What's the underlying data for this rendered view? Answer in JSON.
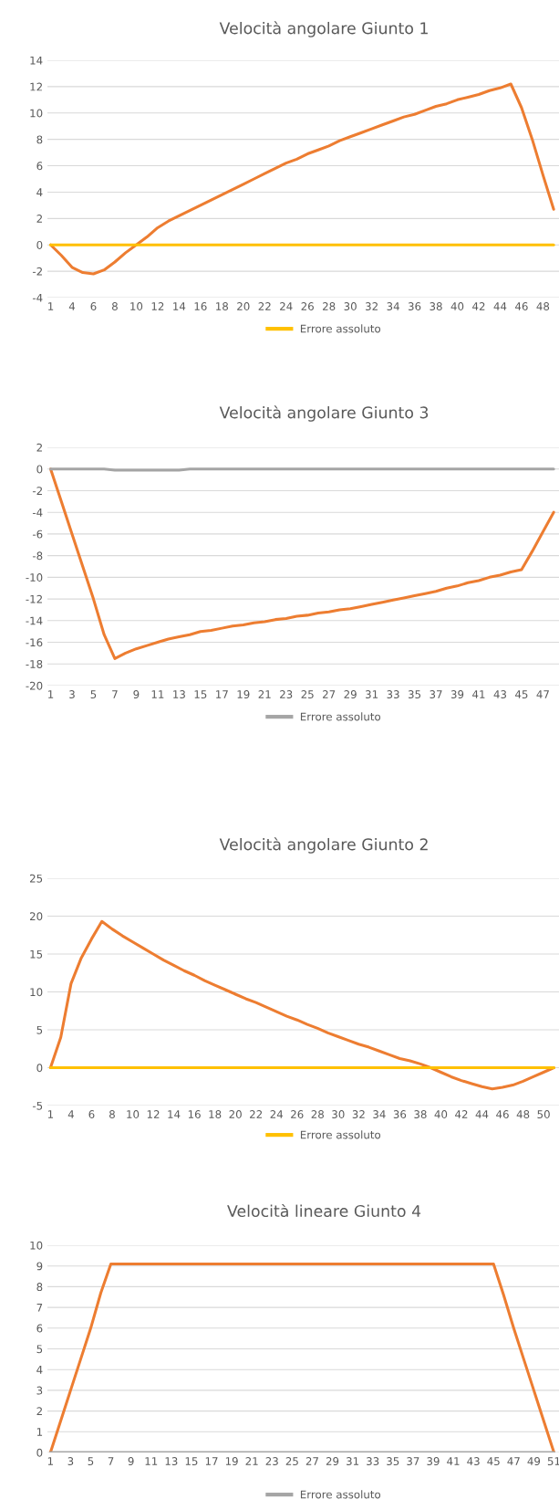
{
  "chart_data": [
    {
      "type": "line",
      "title": "Velocità angolare Giunto 1",
      "categories": [
        "1",
        null,
        "4",
        null,
        "6",
        null,
        "8",
        null,
        "10",
        null,
        "12",
        null,
        "14",
        null,
        "16",
        null,
        "18",
        null,
        "20",
        null,
        "22",
        null,
        "24",
        null,
        "26",
        null,
        "28",
        null,
        "30",
        null,
        "32",
        null,
        "34",
        null,
        "36",
        null,
        "38",
        null,
        "40",
        null,
        "42",
        null,
        "44",
        null,
        "46",
        null,
        "48",
        null
      ],
      "ylim": [
        -4,
        14
      ],
      "yticks": [
        -4,
        -2,
        0,
        2,
        4,
        6,
        8,
        10,
        12,
        14
      ],
      "grid": "y",
      "legend": "bottom",
      "marker": "none",
      "line_style": "solid",
      "series": [
        {
          "color": "#ed7d31",
          "values": [
            0,
            -0.8,
            -1.7,
            -2.1,
            -2.2,
            -1.9,
            -1.3,
            -0.6,
            0,
            0.6,
            1.3,
            1.8,
            2.2,
            2.6,
            3.0,
            3.4,
            3.8,
            4.2,
            4.6,
            5.0,
            5.4,
            5.8,
            6.2,
            6.5,
            6.9,
            7.2,
            7.5,
            7.9,
            8.2,
            8.5,
            8.8,
            9.1,
            9.4,
            9.7,
            9.9,
            10.2,
            10.5,
            10.7,
            11.0,
            11.2,
            11.4,
            11.7,
            11.9,
            12.2,
            10.4,
            8.0,
            5.3,
            2.7
          ]
        },
        {
          "name": "Errore assoluto",
          "color": "#ffc000",
          "values": [
            0,
            0,
            0,
            0,
            0,
            0,
            0,
            0,
            0,
            0,
            0,
            0,
            0,
            0,
            0,
            0,
            0,
            0,
            0,
            0,
            0,
            0,
            0,
            0,
            0,
            0,
            0,
            0,
            0,
            0,
            0,
            0,
            0,
            0,
            0,
            0,
            0,
            0,
            0,
            0,
            0,
            0,
            0,
            0,
            0,
            0,
            0,
            0
          ]
        }
      ]
    },
    {
      "type": "line",
      "title": "Velocità angolare Giunto 3",
      "categories": [
        "1",
        null,
        "3",
        null,
        "5",
        null,
        "7",
        null,
        "9",
        null,
        "11",
        null,
        "13",
        null,
        "15",
        null,
        "17",
        null,
        "19",
        null,
        "21",
        null,
        "23",
        null,
        "25",
        null,
        "27",
        null,
        "29",
        null,
        "31",
        null,
        "33",
        null,
        "35",
        null,
        "37",
        null,
        "39",
        null,
        "41",
        null,
        "43",
        null,
        "45",
        null,
        "47",
        null
      ],
      "ylim": [
        -20,
        2
      ],
      "yticks": [
        -20,
        -18,
        -16,
        -14,
        -12,
        -10,
        -8,
        -6,
        -4,
        -2,
        0,
        2
      ],
      "grid": "y",
      "legend": "bottom",
      "marker": "none",
      "line_style": "solid",
      "series": [
        {
          "color": "#ed7d31",
          "values": [
            0,
            -3,
            -6,
            -9,
            -12,
            -15.3,
            -17.5,
            -17.0,
            -16.6,
            -16.3,
            -16.0,
            -15.7,
            -15.5,
            -15.3,
            -15.0,
            -14.9,
            -14.7,
            -14.5,
            -14.4,
            -14.2,
            -14.1,
            -13.9,
            -13.8,
            -13.6,
            -13.5,
            -13.3,
            -13.2,
            -13.0,
            -12.9,
            -12.7,
            -12.5,
            -12.3,
            -12.1,
            -11.9,
            -11.7,
            -11.5,
            -11.3,
            -11.0,
            -10.8,
            -10.5,
            -10.3,
            -10.0,
            -9.8,
            -9.5,
            -9.3,
            -7.6,
            -5.8,
            -4.0
          ]
        },
        {
          "name": "Errore assoluto",
          "color": "#a5a5a5",
          "values": [
            0,
            0,
            0,
            0,
            0,
            0,
            -0.1,
            -0.1,
            -0.1,
            -0.1,
            -0.1,
            -0.1,
            -0.1,
            0,
            0,
            0,
            0,
            0,
            0,
            0,
            0,
            0,
            0,
            0,
            0,
            0,
            0,
            0,
            0,
            0,
            0,
            0,
            0,
            0,
            0,
            0,
            0,
            0,
            0,
            0,
            0,
            0,
            0,
            0,
            0,
            0,
            0,
            0
          ]
        }
      ]
    },
    {
      "type": "line",
      "title": "Velocità angolare Giunto 2",
      "categories": [
        "1",
        null,
        "4",
        null,
        "6",
        null,
        "8",
        null,
        "10",
        null,
        "12",
        null,
        "14",
        null,
        "16",
        null,
        "18",
        null,
        "20",
        null,
        "22",
        null,
        "24",
        null,
        "26",
        null,
        "28",
        null,
        "30",
        null,
        "32",
        null,
        "34",
        null,
        "36",
        null,
        "38",
        null,
        "40",
        null,
        "42",
        null,
        "44",
        null,
        "46",
        null,
        "48",
        null,
        "50",
        null
      ],
      "ylim": [
        -5,
        25
      ],
      "yticks": [
        -5,
        0,
        5,
        10,
        15,
        20,
        25
      ],
      "grid": "y",
      "legend": "bottom",
      "marker": "none",
      "line_style": "solid",
      "series": [
        {
          "color": "#ed7d31",
          "values": [
            0,
            4.0,
            11.1,
            14.5,
            17.0,
            19.3,
            18.3,
            17.4,
            16.6,
            15.8,
            15.0,
            14.2,
            13.5,
            12.8,
            12.2,
            11.5,
            10.9,
            10.3,
            9.7,
            9.1,
            8.6,
            8.0,
            7.4,
            6.8,
            6.3,
            5.7,
            5.2,
            4.6,
            4.1,
            3.6,
            3.1,
            2.7,
            2.2,
            1.7,
            1.2,
            0.9,
            0.5,
            0,
            -0.6,
            -1.2,
            -1.7,
            -2.1,
            -2.5,
            -2.8,
            -2.6,
            -2.3,
            -1.8,
            -1.2,
            -0.6,
            0
          ]
        },
        {
          "name": "Errore assoluto",
          "color": "#ffc000",
          "values": [
            0,
            0,
            0,
            0,
            0,
            0,
            0,
            0,
            0,
            0,
            0,
            0,
            0,
            0,
            0,
            0,
            0,
            0,
            0,
            0,
            0,
            0,
            0,
            0,
            0,
            0,
            0,
            0,
            0,
            0,
            0,
            0,
            0,
            0,
            0,
            0,
            0,
            0,
            0,
            0,
            0,
            0,
            0,
            0,
            0,
            0,
            0,
            0,
            0,
            0
          ]
        }
      ]
    },
    {
      "type": "line",
      "title": "Velocità lineare Giunto 4",
      "categories": [
        "1",
        null,
        "3",
        null,
        "5",
        null,
        "7",
        null,
        "9",
        null,
        "11",
        null,
        "13",
        null,
        "15",
        null,
        "17",
        null,
        "19",
        null,
        "21",
        null,
        "23",
        null,
        "25",
        null,
        "27",
        null,
        "29",
        null,
        "31",
        null,
        "33",
        null,
        "35",
        null,
        "37",
        null,
        "39",
        null,
        "41",
        null,
        "43",
        null,
        "45",
        null,
        "47",
        null,
        "49",
        null,
        "51"
      ],
      "ylim": [
        0,
        10
      ],
      "yticks": [
        0,
        1,
        2,
        3,
        4,
        5,
        6,
        7,
        8,
        9,
        10
      ],
      "grid": "y",
      "legend": "bottom",
      "marker": "none",
      "line_style": "solid",
      "series": [
        {
          "color": "#ed7d31",
          "values": [
            0,
            1.5,
            3.0,
            4.5,
            6.0,
            7.7,
            9.1,
            9.1,
            9.1,
            9.1,
            9.1,
            9.1,
            9.1,
            9.1,
            9.1,
            9.1,
            9.1,
            9.1,
            9.1,
            9.1,
            9.1,
            9.1,
            9.1,
            9.1,
            9.1,
            9.1,
            9.1,
            9.1,
            9.1,
            9.1,
            9.1,
            9.1,
            9.1,
            9.1,
            9.1,
            9.1,
            9.1,
            9.1,
            9.1,
            9.1,
            9.1,
            9.1,
            9.1,
            9.1,
            9.1,
            7.6,
            6.0,
            4.5,
            3.0,
            1.5,
            0
          ]
        },
        {
          "name": "Errore assoluto",
          "color": "#a5a5a5",
          "values": [
            0,
            0,
            0,
            0,
            0,
            0,
            0,
            0,
            0,
            0,
            0,
            0,
            0,
            0,
            0,
            0,
            0,
            0,
            0,
            0,
            0,
            0,
            0,
            0,
            0,
            0,
            0,
            0,
            0,
            0,
            0,
            0,
            0,
            0,
            0,
            0,
            0,
            0,
            0,
            0,
            0,
            0,
            0,
            0,
            0,
            0,
            0,
            0,
            0,
            0,
            0
          ]
        }
      ]
    }
  ]
}
